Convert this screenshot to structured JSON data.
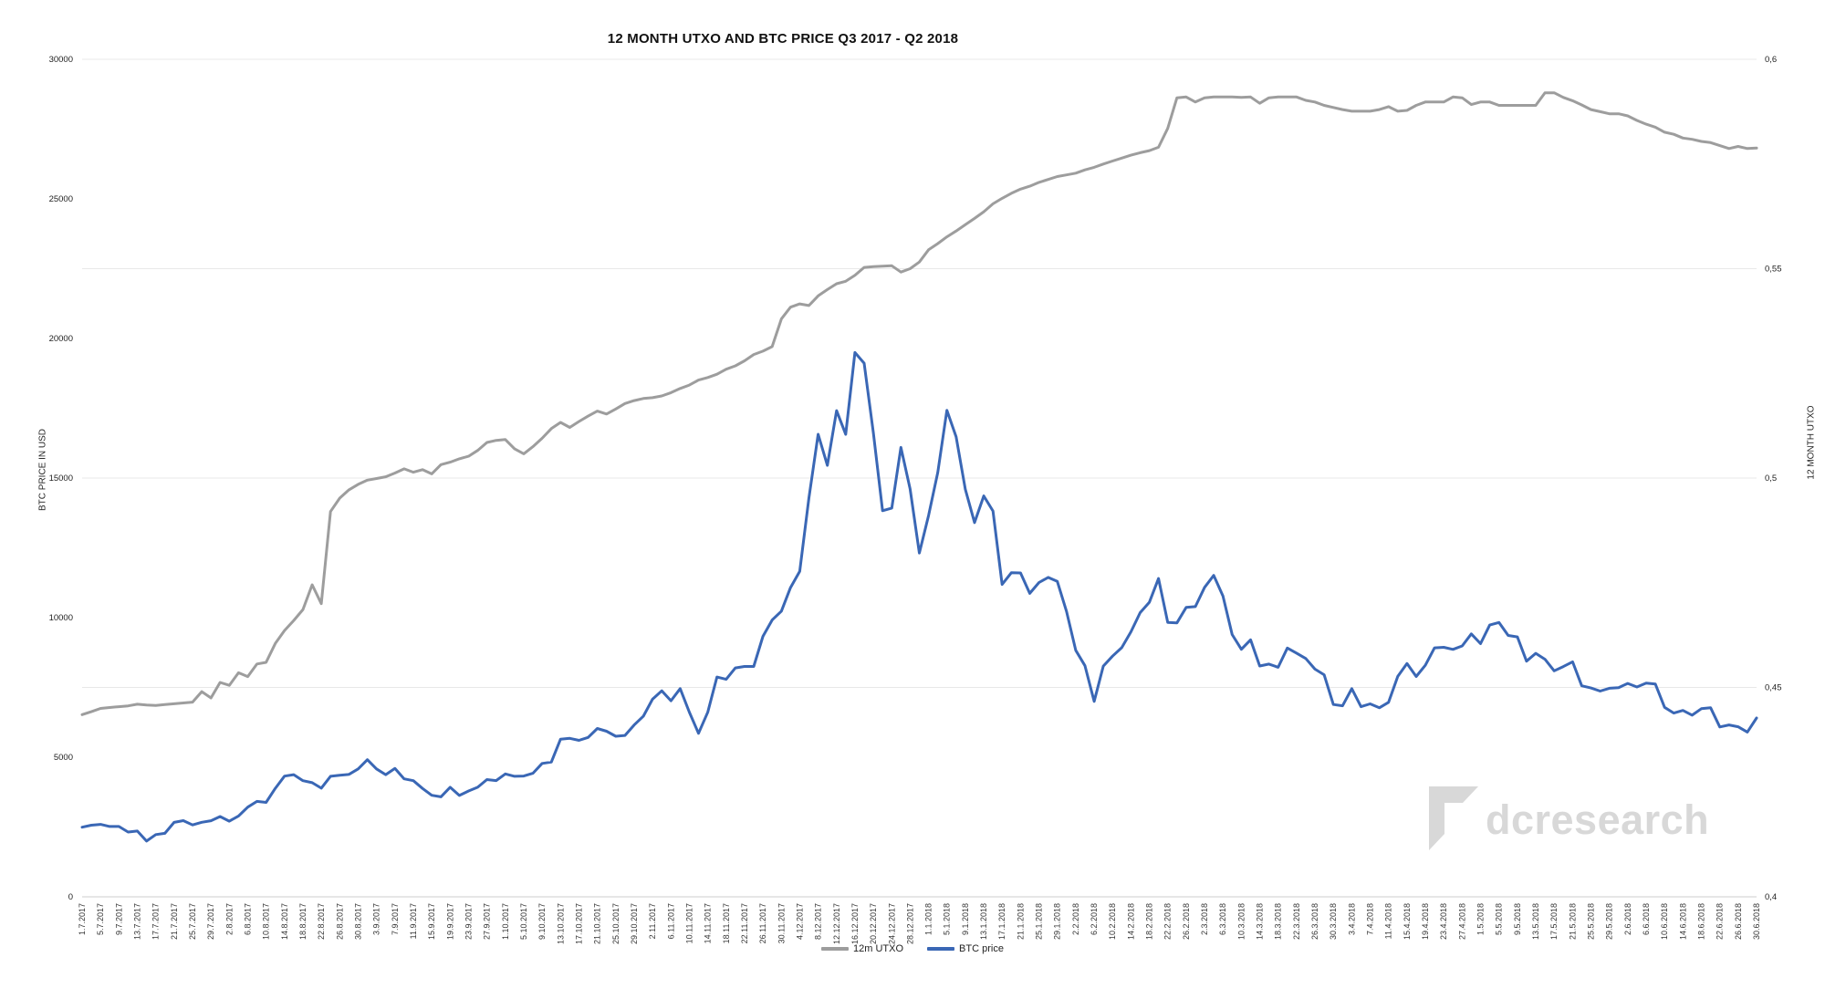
{
  "title": "12 MONTH UTXO AND BTC PRICE Q3 2017 - Q2 2018",
  "watermark": {
    "text": "dcresearch",
    "logo_icon": "folded-corner-logo",
    "color": "#d8d8d8"
  },
  "legend": [
    {
      "label": "12m UTXO",
      "color": "#9d9d9d"
    },
    {
      "label": "BTC price",
      "color": "#3a67b5"
    }
  ],
  "chart_data": {
    "type": "line",
    "title": "12 MONTH UTXO AND BTC PRICE Q3 2017 - Q2 2018",
    "grid": "horizontal-only",
    "legend_position": "bottom-center",
    "x_axis": {
      "total_days": 364,
      "tick_step_days": 4,
      "tick_labels": [
        "1.7.2017",
        "5.7.2017",
        "9.7.2017",
        "13.7.2017",
        "17.7.2017",
        "21.7.2017",
        "25.7.2017",
        "29.7.2017",
        "2.8.2017",
        "6.8.2017",
        "10.8.2017",
        "14.8.2017",
        "18.8.2017",
        "22.8.2017",
        "26.8.2017",
        "30.8.2017",
        "3.9.2017",
        "7.9.2017",
        "11.9.2017",
        "15.9.2017",
        "19.9.2017",
        "23.9.2017",
        "27.9.2017",
        "1.10.2017",
        "5.10.2017",
        "9.10.2017",
        "13.10.2017",
        "17.10.2017",
        "21.10.2017",
        "25.10.2017",
        "29.10.2017",
        "2.11.2017",
        "6.11.2017",
        "10.11.2017",
        "14.11.2017",
        "18.11.2017",
        "22.11.2017",
        "26.11.2017",
        "30.11.2017",
        "4.12.2017",
        "8.12.2017",
        "12.12.2017",
        "16.12.2017",
        "20.12.2017",
        "24.12.2017",
        "28.12.2017",
        "1.1.2018",
        "5.1.2018",
        "9.1.2018",
        "13.1.2018",
        "17.1.2018",
        "21.1.2018",
        "25.1.2018",
        "29.1.2018",
        "2.2.2018",
        "6.2.2018",
        "10.2.2018",
        "14.2.2018",
        "18.2.2018",
        "22.2.2018",
        "26.2.2018",
        "2.3.2018",
        "6.3.2018",
        "10.3.2018",
        "14.3.2018",
        "18.3.2018",
        "22.3.2018",
        "26.3.2018",
        "30.3.2018",
        "3.4.2018",
        "7.4.2018",
        "11.4.2018",
        "15.4.2018",
        "19.4.2018",
        "23.4.2018",
        "27.4.2018",
        "1.5.2018",
        "5.5.2018",
        "9.5.2018",
        "13.5.2018",
        "17.5.2018",
        "21.5.2018",
        "25.5.2018",
        "29.5.2018",
        "2.6.2018",
        "6.6.2018",
        "10.6.2018",
        "14.6.2018",
        "18.6.2018",
        "22.6.2018",
        "26.6.2018",
        "30.6.2018"
      ]
    },
    "y_left": {
      "label": "BTC PRICE IN USD",
      "min": 0,
      "max": 30000,
      "tick_values": [
        0,
        5000,
        10000,
        15000,
        20000,
        25000,
        30000
      ],
      "tick_labels": [
        "0",
        "5000",
        "10000",
        "15000",
        "20000",
        "25000",
        "30000"
      ]
    },
    "y_right": {
      "label": "12 MONTH UTXO",
      "min": 0.4,
      "max": 0.6,
      "tick_values": [
        0.4,
        0.45,
        0.5,
        0.55,
        0.6
      ],
      "tick_labels": [
        "0,4",
        "0,45",
        "0,5",
        "0,55",
        "0,6"
      ],
      "gridline_values": [
        0.45,
        0.5,
        0.55,
        0.6
      ]
    },
    "sampling": "one value every 2 days from 1.7.2017 to 30.6.2018",
    "series": [
      {
        "name": "12m UTXO",
        "axis": "right",
        "color": "#9d9d9d",
        "values": [
          0.4435,
          0.4442,
          0.445,
          0.4452,
          0.4454,
          0.4456,
          0.446,
          0.4458,
          0.4457,
          0.4459,
          0.4461,
          0.4463,
          0.4465,
          0.449,
          0.4475,
          0.4512,
          0.4505,
          0.4535,
          0.4526,
          0.4556,
          0.456,
          0.4605,
          0.4636,
          0.466,
          0.4686,
          0.4745,
          0.47,
          0.492,
          0.4952,
          0.4972,
          0.4985,
          0.4995,
          0.4999,
          0.5003,
          0.5012,
          0.5022,
          0.5014,
          0.502,
          0.501,
          0.5032,
          0.5038,
          0.5046,
          0.5052,
          0.5066,
          0.5085,
          0.509,
          0.5092,
          0.507,
          0.5058,
          0.5075,
          0.5095,
          0.5118,
          0.5133,
          0.5121,
          0.5135,
          0.5148,
          0.516,
          0.5153,
          0.5165,
          0.5178,
          0.5185,
          0.519,
          0.5192,
          0.5196,
          0.5204,
          0.5214,
          0.5222,
          0.5234,
          0.524,
          0.5248,
          0.526,
          0.5268,
          0.528,
          0.5295,
          0.5303,
          0.5314,
          0.538,
          0.5408,
          0.5416,
          0.5412,
          0.5435,
          0.545,
          0.5464,
          0.547,
          0.5484,
          0.5503,
          0.5505,
          0.5506,
          0.5507,
          0.5492,
          0.55,
          0.5516,
          0.5545,
          0.556,
          0.5576,
          0.559,
          0.5605,
          0.562,
          0.5636,
          0.5655,
          0.5668,
          0.568,
          0.569,
          0.5697,
          0.5706,
          0.5713,
          0.572,
          0.5724,
          0.5728,
          0.5736,
          0.5742,
          0.575,
          0.5757,
          0.5764,
          0.5771,
          0.5777,
          0.5782,
          0.579,
          0.5835,
          0.5908,
          0.591,
          0.5898,
          0.5908,
          0.591,
          0.591,
          0.591,
          0.5909,
          0.591,
          0.5895,
          0.5908,
          0.591,
          0.591,
          0.591,
          0.5902,
          0.5898,
          0.589,
          0.5885,
          0.588,
          0.5876,
          0.5876,
          0.5876,
          0.588,
          0.5887,
          0.5876,
          0.5878,
          0.589,
          0.5898,
          0.5898,
          0.5898,
          0.591,
          0.5908,
          0.5892,
          0.5898,
          0.5898,
          0.589,
          0.589,
          0.589,
          0.589,
          0.589,
          0.592,
          0.592,
          0.5909,
          0.5901,
          0.5891,
          0.588,
          0.5875,
          0.587,
          0.587,
          0.5865,
          0.5854,
          0.5845,
          0.5838,
          0.5826,
          0.5821,
          0.5812,
          0.5809,
          0.5804,
          0.5801,
          0.5794,
          0.5787,
          0.5792,
          0.5787,
          0.5788
        ]
      },
      {
        "name": "BTC price",
        "axis": "left",
        "color": "#3a67b5",
        "values": [
          2492,
          2564,
          2595,
          2518,
          2518,
          2319,
          2357,
          1998,
          2228,
          2273,
          2667,
          2730,
          2576,
          2671,
          2726,
          2875,
          2710,
          2895,
          3213,
          3419,
          3381,
          3884,
          4325,
          4376,
          4160,
          4087,
          3892,
          4318,
          4352,
          4384,
          4583,
          4911,
          4582,
          4376,
          4599,
          4226,
          4161,
          3882,
          3637,
          3582,
          3924,
          3631,
          3792,
          3926,
          4200,
          4163,
          4403,
          4317,
          4328,
          4426,
          4778,
          4826,
          5647,
          5678,
          5605,
          5708,
          6031,
          5930,
          5750,
          5780,
          6153,
          6468,
          7078,
          7379,
          7022,
          7459,
          6618,
          5857,
          6611,
          7871,
          7790,
          8200,
          8253,
          8253,
          9330,
          9916,
          10233,
          11074,
          11657,
          14291,
          16569,
          15455,
          17415,
          16564,
          19497,
          19114,
          16624,
          13831,
          13925,
          16099,
          14606,
          12314,
          13657,
          15201,
          17429,
          16477,
          14595,
          13405,
          14360,
          13819,
          11188,
          11607,
          11600,
          10868,
          11259,
          11440,
          11296,
          10221,
          8830,
          8277,
          7000,
          8265,
          8621,
          8926,
          9494,
          10179,
          10551,
          11403,
          9830,
          9813,
          10366,
          10397,
          11086,
          11512,
          10779,
          9395,
          8866,
          9205,
          8269,
          8338,
          8223,
          8913,
          8728,
          8537,
          8158,
          7954,
          6890,
          6844,
          7456,
          6811,
          6911,
          6770,
          6968,
          7895,
          8355,
          7892,
          8294,
          8917,
          8938,
          8864,
          8987,
          9419,
          9067,
          9734,
          9826,
          9362,
          9310,
          8441,
          8723,
          8510,
          8094,
          8247,
          8418,
          7558,
          7480,
          7368,
          7472,
          7494,
          7643,
          7515,
          7653,
          7622,
          6786,
          6582,
          6675,
          6506,
          6740,
          6776,
          6086,
          6157,
          6093,
          5903,
          6404
        ]
      }
    ]
  }
}
